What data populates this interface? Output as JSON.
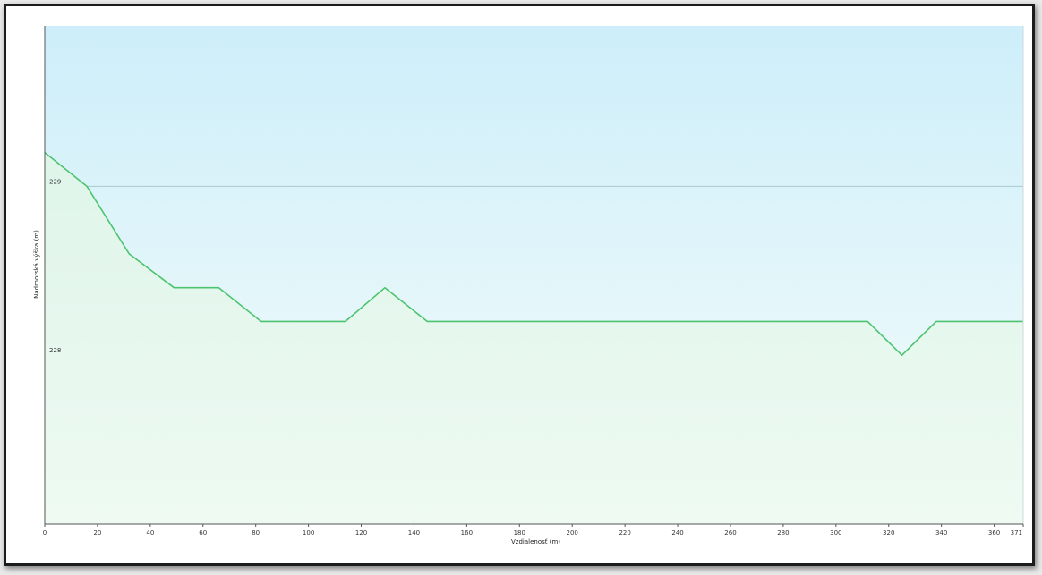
{
  "chart_data": {
    "type": "area",
    "title": "",
    "xlabel": "Vzdialenosť (m)",
    "ylabel": "Nadmorská výška (m)",
    "xlim": [
      0,
      371
    ],
    "ylim": [
      227.0,
      229.95
    ],
    "x_ticks": [
      0,
      20,
      40,
      60,
      80,
      100,
      120,
      140,
      160,
      180,
      200,
      220,
      240,
      260,
      280,
      300,
      320,
      340,
      360,
      371
    ],
    "y_ticks": [
      228,
      229
    ],
    "grid": "horizontal",
    "legend": "none",
    "series": [
      {
        "x": [
          0,
          16,
          32,
          49,
          66,
          82,
          98,
          114,
          129,
          145,
          161,
          177,
          195,
          212,
          230,
          247,
          262,
          279,
          297,
          312,
          325,
          338,
          355,
          371
        ],
        "values": [
          229.2,
          229.0,
          228.6,
          228.4,
          228.4,
          228.2,
          228.2,
          228.2,
          228.4,
          228.2,
          228.2,
          228.2,
          228.2,
          228.2,
          228.2,
          228.2,
          228.2,
          228.2,
          228.2,
          228.2,
          228.0,
          228.2,
          228.2,
          228.2
        ],
        "color": "#4cc46f"
      }
    ],
    "colors": {
      "sky_top": "#cdeefa",
      "sky_bottom": "#f6fdfb",
      "fill_top": "#dff5ea",
      "fill_bottom": "#eefaf2",
      "grid": "#a8c8cc",
      "axis": "#555555"
    }
  }
}
